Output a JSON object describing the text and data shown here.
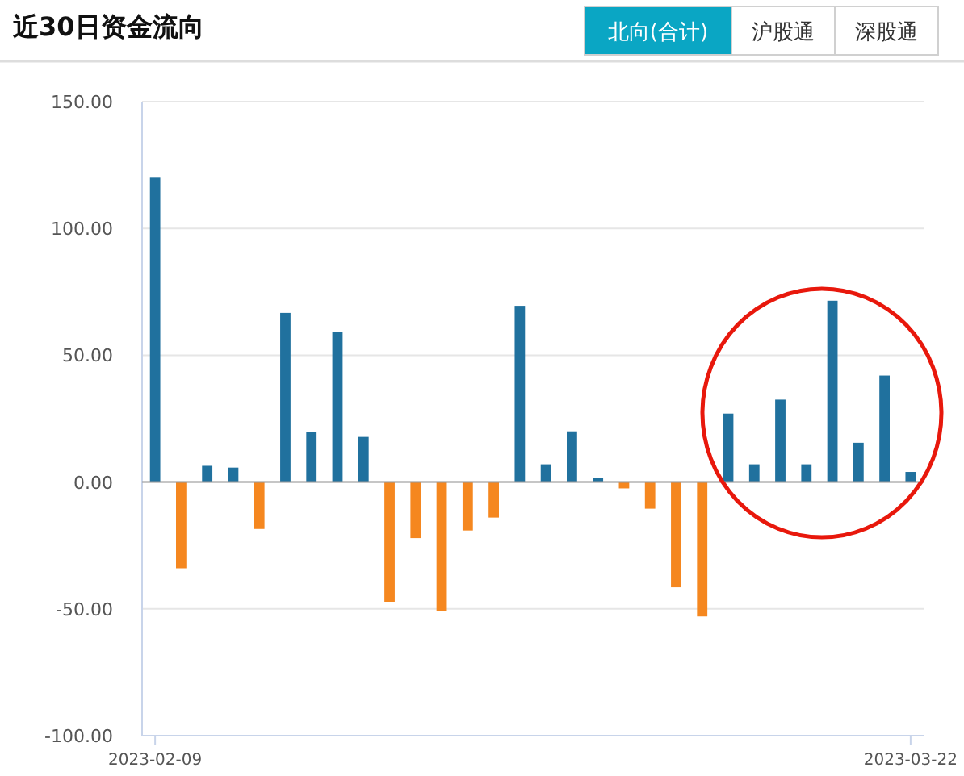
{
  "chart_data": {
    "type": "bar",
    "title": "近30日资金流向",
    "annotations": [
      "北向(合计)",
      "沪股通",
      "深股通"
    ],
    "categories": [
      "2023-02-09",
      null,
      null,
      null,
      null,
      null,
      null,
      null,
      null,
      null,
      null,
      null,
      null,
      null,
      null,
      null,
      null,
      null,
      null,
      null,
      null,
      null,
      null,
      null,
      null,
      null,
      null,
      null,
      null,
      "2023-03-22"
    ],
    "values": [
      120,
      -34,
      6.4,
      5.7,
      -18.5,
      66.7,
      19.8,
      59.3,
      17.8,
      -47.2,
      -22.1,
      -50.8,
      -19.1,
      -14,
      69.5,
      7,
      20,
      1.5,
      -2.5,
      -10.5,
      -41.5,
      -53,
      27,
      7,
      32.5,
      7,
      71.5,
      15.5,
      42,
      4
    ],
    "colors": [
      "#20719e",
      "#f5871f",
      "#20719e",
      "#20719e",
      "#f5871f",
      "#20719e",
      "#20719e",
      "#20719e",
      "#20719e",
      "#f5871f",
      "#f5871f",
      "#f5871f",
      "#f5871f",
      "#f5871f",
      "#20719e",
      "#20719e",
      "#20719e",
      "#20719e",
      "#f5871f",
      "#f5871f",
      "#f5871f",
      "#f5871f",
      "#20719e",
      "#20719e",
      "#20719e",
      "#20719e",
      "#20719e",
      "#20719e",
      "#20719e",
      "#20719e"
    ],
    "ylim": [
      -100,
      150
    ],
    "yticks": [
      {
        "value": -100,
        "label": "-100.00"
      },
      {
        "value": -50,
        "label": "-50.00"
      },
      {
        "value": 0,
        "label": "0.00"
      },
      {
        "value": 50,
        "label": "50.00"
      },
      {
        "value": 100,
        "label": "100.00"
      },
      {
        "value": 150,
        "label": "150.00"
      }
    ],
    "grid": "y"
  }
}
